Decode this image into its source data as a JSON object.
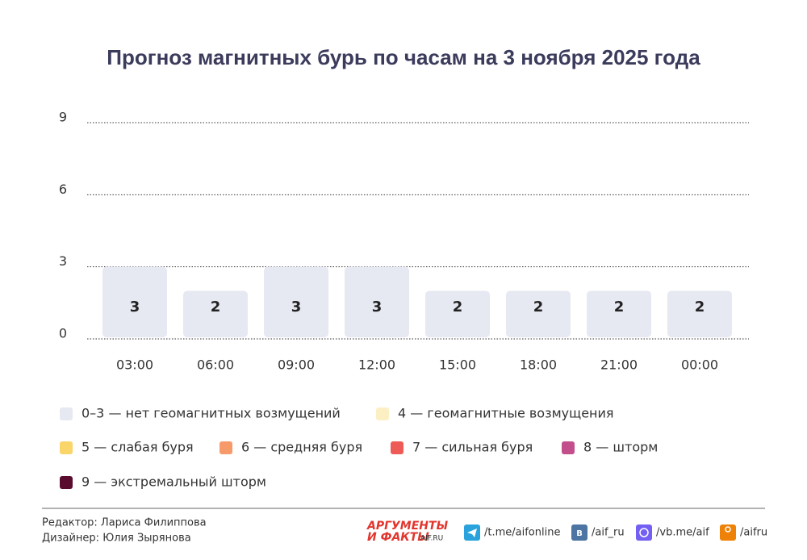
{
  "chart_data": {
    "type": "bar",
    "title": "Прогноз магнитных бурь по часам на 3 ноября 2025 года",
    "categories": [
      "03:00",
      "06:00",
      "09:00",
      "12:00",
      "15:00",
      "18:00",
      "21:00",
      "00:00"
    ],
    "values": [
      3,
      2,
      3,
      3,
      2,
      2,
      2,
      2
    ],
    "color": "#e6e8f2",
    "ylim": [
      0,
      9
    ],
    "yticks": [
      0,
      3,
      6,
      9
    ],
    "grid": true,
    "legend": [
      {
        "label": "0–3 — нет геомагнитных возмущений",
        "color": "#e6e8f2"
      },
      {
        "label": "4 — геомагнитные возмущения",
        "color": "#fdefc4"
      },
      {
        "label": "5 — слабая буря",
        "color": "#f9d56a"
      },
      {
        "label": "6 — средняя буря",
        "color": "#f79a6a"
      },
      {
        "label": "7 — сильная буря",
        "color": "#ee5a55"
      },
      {
        "label": "8 — шторм",
        "color": "#c24f8c"
      },
      {
        "label": "9 — экстремальный шторм",
        "color": "#5a0c2e"
      }
    ]
  },
  "footer": {
    "editor": "Редактор: Лариса Филиппова",
    "designer": "Дизайнер: Юлия Зырянова",
    "logo": [
      "АРГУМЕНТЫ",
      "И ФАКТЫ",
      "AIF.RU"
    ],
    "links": [
      "/t.me/aifonline",
      "/aif_ru",
      "/vb.me/aif",
      "/aifru"
    ]
  }
}
